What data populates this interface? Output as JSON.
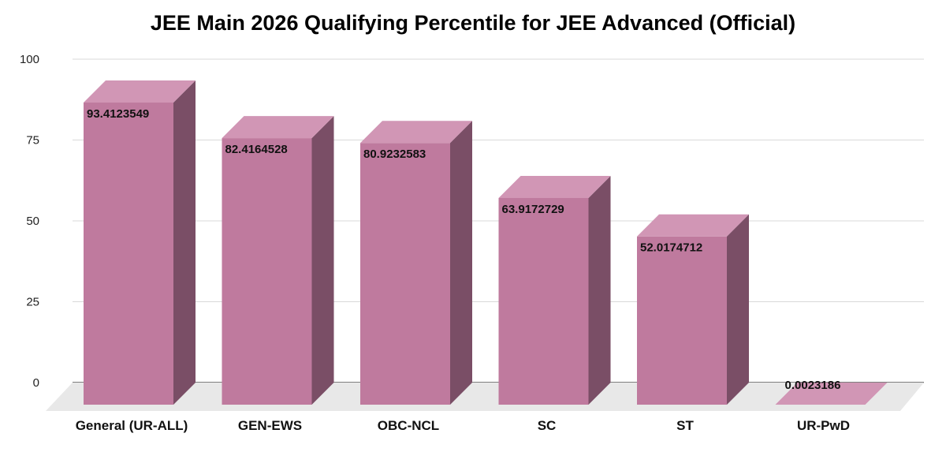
{
  "chart_data": {
    "type": "bar",
    "style": "3d-column",
    "title": "JEE Main 2026 Qualifying Percentile for JEE Advanced (Official)",
    "xlabel": "",
    "ylabel": "",
    "ylim": [
      0,
      100
    ],
    "yticks": [
      "0",
      "25",
      "50",
      "75",
      "100"
    ],
    "grid": true,
    "legend": "none",
    "categories": [
      "General (UR-ALL)",
      "GEN-EWS",
      "OBC-NCL",
      "SC",
      "ST",
      "UR-PwD"
    ],
    "values": [
      93.4123549,
      82.4164528,
      80.9232583,
      63.9172729,
      52.0174712,
      0.0023186
    ],
    "data_labels": [
      "93.4123549",
      "82.4164528",
      "80.9232583",
      "63.9172729",
      "52.0174712",
      "0.0023186"
    ],
    "colors": {
      "front": "#bf7a9e",
      "top": "#d196b5",
      "side": "#7a4e66",
      "floor": "#e8e8e8",
      "grid": "#d9d9d9"
    }
  }
}
